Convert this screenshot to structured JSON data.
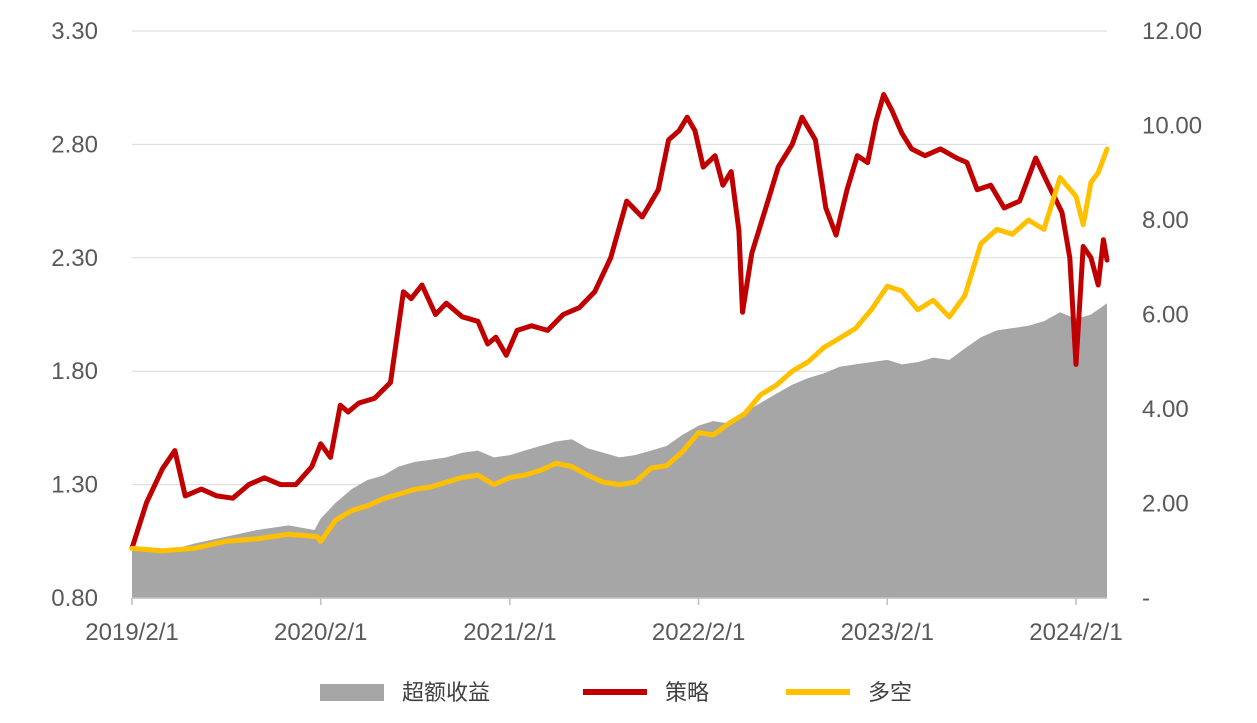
{
  "chart_data": {
    "type": "line",
    "title": "",
    "xlabel": "",
    "ylabel": "",
    "x_ticks": [
      "2019/2/1",
      "2020/2/1",
      "2021/2/1",
      "2022/2/1",
      "2023/2/1",
      "2024/2/1"
    ],
    "y_left_ticks": [
      "0.80",
      "1.30",
      "1.80",
      "2.30",
      "2.80",
      "3.30"
    ],
    "y_right_ticks": [
      "-",
      "2.00",
      "4.00",
      "6.00",
      "8.00",
      "10.00",
      "12.00"
    ],
    "ylim_left": [
      0.8,
      3.3
    ],
    "ylim_right": [
      0,
      12
    ],
    "x_range": [
      "2019-02-01",
      "2024-04-01"
    ],
    "grid": true,
    "legend_position": "bottom",
    "series": [
      {
        "name": "超额收益",
        "type": "area",
        "axis": "left",
        "color": "#a6a6a6",
        "points": [
          [
            "2019-02-01",
            1.01
          ],
          [
            "2019-04-01",
            1.0
          ],
          [
            "2019-06-01",
            1.04
          ],
          [
            "2019-08-01",
            1.07
          ],
          [
            "2019-10-01",
            1.1
          ],
          [
            "2019-12-01",
            1.12
          ],
          [
            "2020-01-20",
            1.1
          ],
          [
            "2020-02-01",
            1.15
          ],
          [
            "2020-03-01",
            1.22
          ],
          [
            "2020-04-01",
            1.28
          ],
          [
            "2020-05-01",
            1.32
          ],
          [
            "2020-06-01",
            1.34
          ],
          [
            "2020-07-01",
            1.38
          ],
          [
            "2020-08-01",
            1.4
          ],
          [
            "2020-09-01",
            1.41
          ],
          [
            "2020-10-01",
            1.42
          ],
          [
            "2020-11-01",
            1.44
          ],
          [
            "2020-12-01",
            1.45
          ],
          [
            "2021-01-01",
            1.42
          ],
          [
            "2021-02-01",
            1.43
          ],
          [
            "2021-03-01",
            1.45
          ],
          [
            "2021-04-01",
            1.47
          ],
          [
            "2021-05-01",
            1.49
          ],
          [
            "2021-06-01",
            1.5
          ],
          [
            "2021-07-01",
            1.46
          ],
          [
            "2021-08-01",
            1.44
          ],
          [
            "2021-09-01",
            1.42
          ],
          [
            "2021-10-01",
            1.43
          ],
          [
            "2021-11-01",
            1.45
          ],
          [
            "2021-12-01",
            1.47
          ],
          [
            "2022-01-01",
            1.52
          ],
          [
            "2022-02-01",
            1.56
          ],
          [
            "2022-03-01",
            1.58
          ],
          [
            "2022-04-01",
            1.57
          ],
          [
            "2022-05-01",
            1.62
          ],
          [
            "2022-06-01",
            1.66
          ],
          [
            "2022-07-01",
            1.7
          ],
          [
            "2022-08-01",
            1.74
          ],
          [
            "2022-09-01",
            1.77
          ],
          [
            "2022-10-01",
            1.79
          ],
          [
            "2022-11-01",
            1.82
          ],
          [
            "2022-12-01",
            1.83
          ],
          [
            "2023-01-01",
            1.84
          ],
          [
            "2023-02-01",
            1.85
          ],
          [
            "2023-03-01",
            1.83
          ],
          [
            "2023-04-01",
            1.84
          ],
          [
            "2023-05-01",
            1.86
          ],
          [
            "2023-06-01",
            1.85
          ],
          [
            "2023-07-01",
            1.9
          ],
          [
            "2023-08-01",
            1.95
          ],
          [
            "2023-09-01",
            1.98
          ],
          [
            "2023-10-01",
            1.99
          ],
          [
            "2023-11-01",
            2.0
          ],
          [
            "2023-12-01",
            2.02
          ],
          [
            "2024-01-01",
            2.06
          ],
          [
            "2024-02-01",
            2.03
          ],
          [
            "2024-03-01",
            2.05
          ],
          [
            "2024-04-01",
            2.1
          ]
        ]
      },
      {
        "name": "策略",
        "type": "line",
        "axis": "left",
        "color": "#c00000",
        "points": [
          [
            "2019-02-01",
            1.02
          ],
          [
            "2019-03-01",
            1.22
          ],
          [
            "2019-04-01",
            1.37
          ],
          [
            "2019-04-25",
            1.45
          ],
          [
            "2019-05-15",
            1.25
          ],
          [
            "2019-06-15",
            1.28
          ],
          [
            "2019-07-15",
            1.25
          ],
          [
            "2019-08-15",
            1.24
          ],
          [
            "2019-09-15",
            1.3
          ],
          [
            "2019-10-15",
            1.33
          ],
          [
            "2019-11-15",
            1.3
          ],
          [
            "2019-12-15",
            1.3
          ],
          [
            "2020-01-15",
            1.38
          ],
          [
            "2020-02-01",
            1.48
          ],
          [
            "2020-02-20",
            1.42
          ],
          [
            "2020-03-10",
            1.65
          ],
          [
            "2020-03-25",
            1.62
          ],
          [
            "2020-04-15",
            1.66
          ],
          [
            "2020-05-15",
            1.68
          ],
          [
            "2020-06-15",
            1.75
          ],
          [
            "2020-07-10",
            2.15
          ],
          [
            "2020-07-25",
            2.12
          ],
          [
            "2020-08-15",
            2.18
          ],
          [
            "2020-09-10",
            2.05
          ],
          [
            "2020-10-01",
            2.1
          ],
          [
            "2020-11-01",
            2.04
          ],
          [
            "2020-12-01",
            2.02
          ],
          [
            "2020-12-20",
            1.92
          ],
          [
            "2021-01-05",
            1.95
          ],
          [
            "2021-01-25",
            1.87
          ],
          [
            "2021-02-15",
            1.98
          ],
          [
            "2021-03-15",
            2.0
          ],
          [
            "2021-04-15",
            1.98
          ],
          [
            "2021-05-15",
            2.05
          ],
          [
            "2021-06-15",
            2.08
          ],
          [
            "2021-07-15",
            2.15
          ],
          [
            "2021-08-15",
            2.3
          ],
          [
            "2021-09-15",
            2.55
          ],
          [
            "2021-10-15",
            2.48
          ],
          [
            "2021-11-15",
            2.6
          ],
          [
            "2021-12-05",
            2.82
          ],
          [
            "2021-12-25",
            2.86
          ],
          [
            "2022-01-10",
            2.92
          ],
          [
            "2022-01-25",
            2.86
          ],
          [
            "2022-02-10",
            2.7
          ],
          [
            "2022-03-05",
            2.75
          ],
          [
            "2022-03-20",
            2.62
          ],
          [
            "2022-04-05",
            2.68
          ],
          [
            "2022-04-20",
            2.42
          ],
          [
            "2022-04-27",
            2.06
          ],
          [
            "2022-05-15",
            2.32
          ],
          [
            "2022-06-15",
            2.55
          ],
          [
            "2022-07-05",
            2.7
          ],
          [
            "2022-08-01",
            2.8
          ],
          [
            "2022-08-20",
            2.92
          ],
          [
            "2022-09-15",
            2.82
          ],
          [
            "2022-10-05",
            2.52
          ],
          [
            "2022-10-25",
            2.4
          ],
          [
            "2022-11-15",
            2.6
          ],
          [
            "2022-12-05",
            2.75
          ],
          [
            "2022-12-25",
            2.72
          ],
          [
            "2023-01-10",
            2.9
          ],
          [
            "2023-01-25",
            3.02
          ],
          [
            "2023-02-10",
            2.95
          ],
          [
            "2023-03-01",
            2.85
          ],
          [
            "2023-03-20",
            2.78
          ],
          [
            "2023-04-15",
            2.75
          ],
          [
            "2023-05-15",
            2.78
          ],
          [
            "2023-06-15",
            2.74
          ],
          [
            "2023-07-05",
            2.72
          ],
          [
            "2023-07-25",
            2.6
          ],
          [
            "2023-08-20",
            2.62
          ],
          [
            "2023-09-15",
            2.52
          ],
          [
            "2023-10-15",
            2.55
          ],
          [
            "2023-11-15",
            2.74
          ],
          [
            "2023-12-10",
            2.62
          ],
          [
            "2024-01-05",
            2.5
          ],
          [
            "2024-01-20",
            2.3
          ],
          [
            "2024-02-01",
            1.83
          ],
          [
            "2024-02-15",
            2.35
          ],
          [
            "2024-03-01",
            2.3
          ],
          [
            "2024-03-15",
            2.18
          ],
          [
            "2024-03-25",
            2.38
          ],
          [
            "2024-04-01",
            2.29
          ]
        ]
      },
      {
        "name": "多空",
        "type": "line",
        "axis": "right",
        "color": "#ffc000",
        "points": [
          [
            "2019-02-01",
            1.05
          ],
          [
            "2019-04-01",
            1.0
          ],
          [
            "2019-06-01",
            1.05
          ],
          [
            "2019-08-01",
            1.2
          ],
          [
            "2019-10-01",
            1.25
          ],
          [
            "2019-12-01",
            1.35
          ],
          [
            "2020-01-25",
            1.3
          ],
          [
            "2020-02-01",
            1.2
          ],
          [
            "2020-03-01",
            1.65
          ],
          [
            "2020-04-01",
            1.85
          ],
          [
            "2020-05-01",
            1.95
          ],
          [
            "2020-06-01",
            2.1
          ],
          [
            "2020-07-01",
            2.2
          ],
          [
            "2020-08-01",
            2.3
          ],
          [
            "2020-09-01",
            2.35
          ],
          [
            "2020-10-01",
            2.45
          ],
          [
            "2020-11-01",
            2.55
          ],
          [
            "2020-12-01",
            2.6
          ],
          [
            "2021-01-01",
            2.4
          ],
          [
            "2021-02-01",
            2.55
          ],
          [
            "2021-03-01",
            2.6
          ],
          [
            "2021-04-01",
            2.7
          ],
          [
            "2021-05-01",
            2.85
          ],
          [
            "2021-06-01",
            2.78
          ],
          [
            "2021-07-01",
            2.6
          ],
          [
            "2021-08-01",
            2.45
          ],
          [
            "2021-09-01",
            2.4
          ],
          [
            "2021-10-01",
            2.45
          ],
          [
            "2021-11-01",
            2.75
          ],
          [
            "2021-12-01",
            2.8
          ],
          [
            "2022-01-01",
            3.1
          ],
          [
            "2022-02-01",
            3.5
          ],
          [
            "2022-03-01",
            3.45
          ],
          [
            "2022-04-01",
            3.7
          ],
          [
            "2022-05-01",
            3.9
          ],
          [
            "2022-06-01",
            4.3
          ],
          [
            "2022-07-01",
            4.5
          ],
          [
            "2022-08-01",
            4.8
          ],
          [
            "2022-09-01",
            5.0
          ],
          [
            "2022-10-01",
            5.3
          ],
          [
            "2022-11-01",
            5.5
          ],
          [
            "2022-12-01",
            5.7
          ],
          [
            "2023-01-01",
            6.1
          ],
          [
            "2023-02-01",
            6.6
          ],
          [
            "2023-03-01",
            6.5
          ],
          [
            "2023-04-01",
            6.1
          ],
          [
            "2023-05-01",
            6.3
          ],
          [
            "2023-06-01",
            5.95
          ],
          [
            "2023-07-01",
            6.4
          ],
          [
            "2023-08-01",
            7.5
          ],
          [
            "2023-09-01",
            7.8
          ],
          [
            "2023-10-01",
            7.7
          ],
          [
            "2023-11-01",
            8.0
          ],
          [
            "2023-12-01",
            7.8
          ],
          [
            "2024-01-01",
            8.9
          ],
          [
            "2024-02-01",
            8.5
          ],
          [
            "2024-02-15",
            7.9
          ],
          [
            "2024-03-01",
            8.8
          ],
          [
            "2024-03-15",
            9.0
          ],
          [
            "2024-04-01",
            9.5
          ]
        ]
      }
    ]
  }
}
